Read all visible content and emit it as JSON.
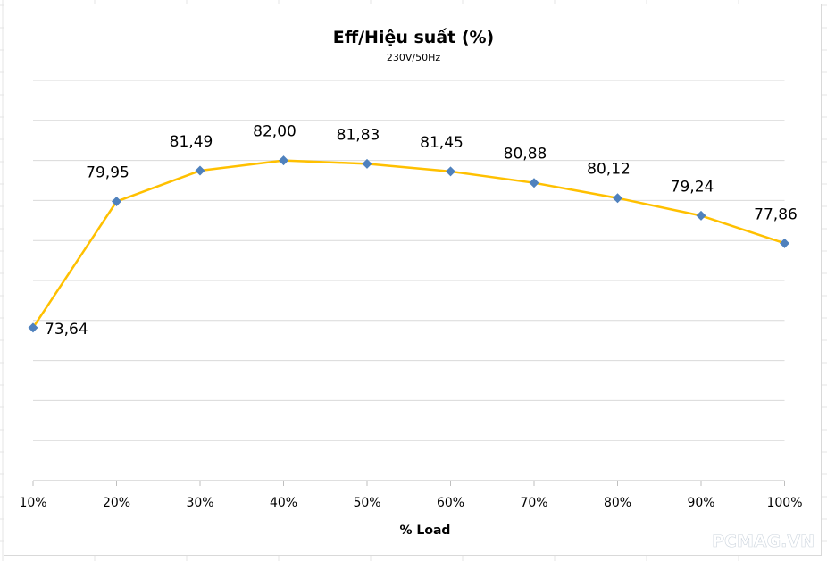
{
  "watermark": "PCMAG.VN",
  "colors": {
    "line": "#FFC000",
    "marker": "#4F81BD",
    "gridline": "#D9D9D9",
    "background": "#FFFFFF"
  },
  "chart_data": {
    "type": "line",
    "title": "Eff/Hiệu suất (%)",
    "subtitle": "230V/50Hz",
    "xlabel": "% Load",
    "ylabel": "",
    "categories": [
      "10%",
      "20%",
      "30%",
      "40%",
      "50%",
      "60%",
      "70%",
      "80%",
      "90%",
      "100%"
    ],
    "series": [
      {
        "values": [
          73.64,
          79.95,
          81.49,
          82.0,
          81.83,
          81.45,
          80.88,
          80.12,
          79.24,
          77.86
        ],
        "labels": [
          "73,64",
          "79,95",
          "81,49",
          "82,00",
          "81,83",
          "81,45",
          "80,88",
          "80,12",
          "79,24",
          "77,86"
        ],
        "marker": "diamond"
      }
    ],
    "ylim": [
      66,
      86
    ],
    "grid": true,
    "legend": "none"
  }
}
